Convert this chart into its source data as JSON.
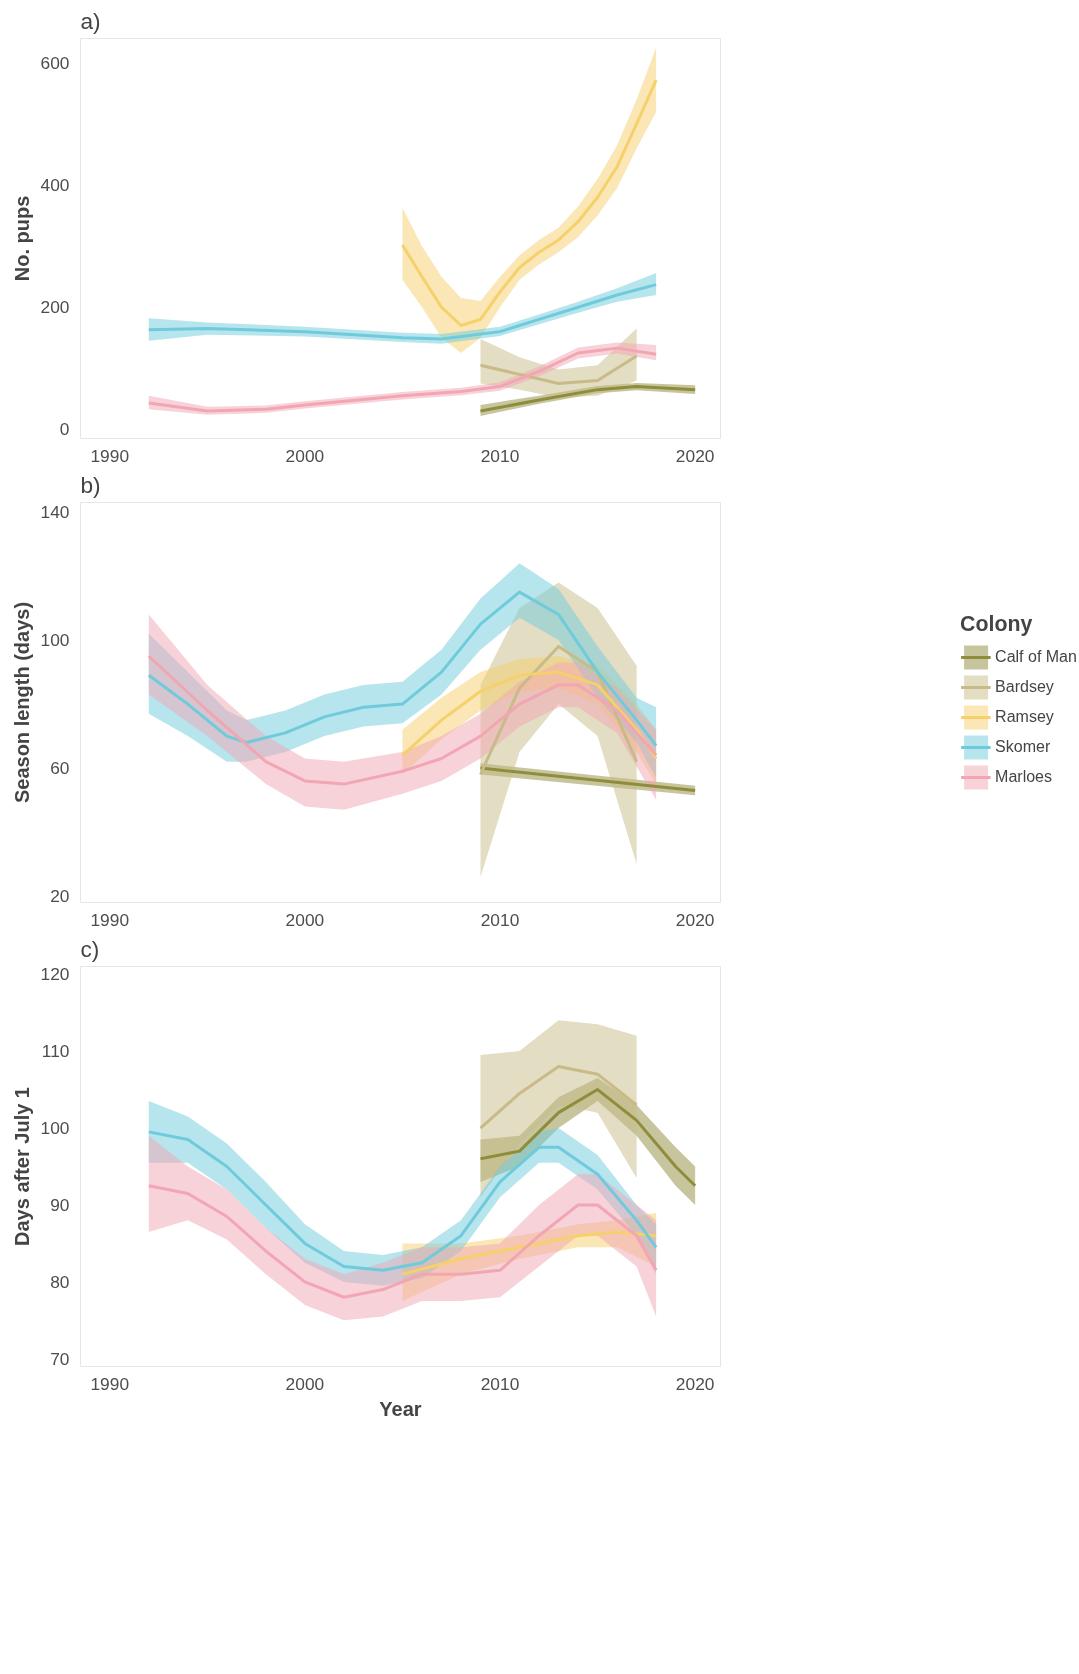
{
  "chart_data": [
    {
      "type": "line",
      "title": "a)",
      "ylabel": "No. pups",
      "xlim": [
        1988.5,
        2021.3
      ],
      "xticks": [
        1990,
        2000,
        2010,
        2020
      ],
      "ylim": [
        -15,
        640
      ],
      "yticks": [
        0,
        200,
        400,
        600
      ],
      "grid": false,
      "legend": false,
      "series": [
        {
          "color": "#8f8c3c",
          "x": [
            2009,
            2012,
            2015,
            2017,
            2020
          ],
          "values": [
            30,
            48,
            65,
            70,
            65
          ],
          "lower": [
            22,
            42,
            59,
            64,
            58
          ],
          "upper": [
            40,
            55,
            71,
            76,
            72
          ]
        },
        {
          "color": "#c8bb87",
          "x": [
            2009,
            2011,
            2013,
            2015,
            2017
          ],
          "values": [
            105,
            90,
            75,
            80,
            120
          ],
          "lower": [
            75,
            65,
            52,
            55,
            80
          ],
          "upper": [
            148,
            118,
            98,
            105,
            165
          ]
        },
        {
          "color": "#f5d06b",
          "x": [
            2005,
            2006,
            2007,
            2008,
            2009,
            2010,
            2011,
            2012,
            2013,
            2014,
            2015,
            2016,
            2017,
            2018
          ],
          "values": [
            302,
            250,
            200,
            170,
            180,
            225,
            265,
            290,
            310,
            340,
            380,
            430,
            500,
            572
          ],
          "lower": [
            245,
            200,
            150,
            125,
            150,
            200,
            245,
            270,
            290,
            315,
            350,
            395,
            460,
            520
          ],
          "upper": [
            363,
            300,
            250,
            215,
            210,
            250,
            285,
            310,
            330,
            365,
            410,
            465,
            540,
            625
          ]
        },
        {
          "color": "#6fcbdb",
          "x": [
            1992,
            1995,
            2000,
            2005,
            2007,
            2010,
            2012,
            2014,
            2016,
            2018
          ],
          "values": [
            163,
            165,
            160,
            150,
            148,
            160,
            180,
            200,
            220,
            237
          ],
          "lower": [
            145,
            155,
            152,
            143,
            140,
            153,
            172,
            191,
            209,
            220
          ],
          "upper": [
            182,
            175,
            168,
            158,
            156,
            168,
            188,
            209,
            231,
            256
          ]
        },
        {
          "color": "#f2a6b3",
          "x": [
            1992,
            1995,
            1998,
            2000,
            2005,
            2008,
            2010,
            2012,
            2014,
            2016,
            2018
          ],
          "values": [
            43,
            30,
            33,
            40,
            55,
            62,
            70,
            95,
            125,
            133,
            123
          ],
          "lower": [
            33,
            24,
            27,
            34,
            49,
            56,
            63,
            87,
            116,
            124,
            113
          ],
          "upper": [
            55,
            37,
            39,
            46,
            61,
            68,
            77,
            103,
            134,
            142,
            138
          ]
        }
      ]
    },
    {
      "type": "line",
      "title": "b)",
      "ylabel": "Season length (days)",
      "legend_title": "Colony",
      "xlim": [
        1988.5,
        2021.3
      ],
      "xticks": [
        1990,
        2000,
        2010,
        2020
      ],
      "ylim": [
        18,
        143
      ],
      "yticks": [
        20,
        60,
        100,
        140
      ],
      "grid": false,
      "legend": "right",
      "series": [
        {
          "name": "Calf of Man",
          "color": "#8f8c3c",
          "x": [
            2009,
            2020
          ],
          "values": [
            60,
            53
          ],
          "lower": [
            58,
            51.5
          ],
          "upper": [
            61.5,
            54.5
          ]
        },
        {
          "name": "Bardsey",
          "color": "#c8bb87",
          "x": [
            2009,
            2011,
            2013,
            2015,
            2017
          ],
          "values": [
            58,
            85,
            98,
            90,
            62
          ],
          "lower": [
            26,
            65,
            80,
            70,
            30
          ],
          "upper": [
            86,
            110,
            118,
            110,
            92
          ]
        },
        {
          "name": "Ramsey",
          "color": "#f5d06b",
          "x": [
            2005,
            2007,
            2009,
            2011,
            2013,
            2015,
            2017,
            2018
          ],
          "values": [
            64,
            75,
            84,
            89,
            90,
            86,
            72,
            63
          ],
          "lower": [
            58,
            69,
            78,
            84,
            85,
            80,
            65,
            55
          ],
          "upper": [
            72,
            82,
            90,
            94,
            95,
            92,
            80,
            72
          ]
        },
        {
          "name": "Skomer",
          "color": "#6fcbdb",
          "x": [
            1992,
            1994,
            1996,
            1997,
            1999,
            2001,
            2003,
            2005,
            2007,
            2009,
            2011,
            2013,
            2015,
            2017,
            2018
          ],
          "values": [
            89,
            80,
            70,
            68,
            71,
            76,
            79,
            80,
            90,
            105,
            115,
            108,
            90,
            75,
            67
          ],
          "lower": [
            77,
            70,
            62,
            62,
            65,
            70,
            73,
            74,
            83,
            97,
            107,
            100,
            82,
            68,
            57
          ],
          "upper": [
            102,
            90,
            78,
            75,
            78,
            83,
            86,
            87,
            97,
            113,
            124,
            116,
            98,
            82,
            79
          ]
        },
        {
          "name": "Marloes",
          "color": "#f2a6b3",
          "x": [
            1992,
            1995,
            1998,
            2000,
            2002,
            2005,
            2007,
            2009,
            2011,
            2013,
            2014,
            2016,
            2018
          ],
          "values": [
            95,
            78,
            62,
            56,
            55,
            59,
            63,
            70,
            80,
            86,
            86,
            78,
            64
          ],
          "lower": [
            83,
            70,
            55,
            48,
            47,
            52,
            56,
            63,
            73,
            79,
            79,
            71,
            50
          ],
          "upper": [
            108,
            86,
            70,
            63,
            62,
            65,
            70,
            77,
            87,
            93,
            93,
            85,
            72
          ]
        }
      ]
    },
    {
      "type": "line",
      "title": "c)",
      "xlabel": "Year",
      "ylabel": "Days after July 1",
      "xlim": [
        1988.5,
        2021.3
      ],
      "xticks": [
        1990,
        2000,
        2010,
        2020
      ],
      "ylim": [
        69,
        121
      ],
      "yticks": [
        70,
        80,
        90,
        100,
        110,
        120
      ],
      "grid": false,
      "legend": false,
      "series": [
        {
          "color": "#8f8c3c",
          "x": [
            2009,
            2011,
            2013,
            2015,
            2017,
            2019,
            2020
          ],
          "values": [
            96,
            97,
            102,
            105,
            101,
            95,
            92.5
          ],
          "lower": [
            93,
            95,
            100,
            103.5,
            99,
            92.5,
            90
          ],
          "upper": [
            98.5,
            99,
            104,
            106.5,
            103,
            97.5,
            95
          ]
        },
        {
          "color": "#c8bb87",
          "x": [
            2009,
            2011,
            2013,
            2015,
            2017
          ],
          "values": [
            100,
            104.5,
            108,
            107,
            103
          ],
          "lower": [
            91,
            98,
            103,
            102,
            93.5
          ],
          "upper": [
            109.5,
            110,
            114,
            113.5,
            112
          ]
        },
        {
          "color": "#f5d06b",
          "x": [
            2005,
            2008,
            2011,
            2014,
            2016,
            2018
          ],
          "values": [
            81,
            83,
            84.5,
            86,
            86.5,
            86
          ],
          "lower": [
            77.5,
            81,
            83,
            84.5,
            84.5,
            82
          ],
          "upper": [
            85,
            85,
            86,
            87.5,
            88,
            89
          ]
        },
        {
          "color": "#6fcbdb",
          "x": [
            1992,
            1994,
            1996,
            1998,
            2000,
            2002,
            2004,
            2006,
            2008,
            2010,
            2012,
            2013,
            2015,
            2017,
            2018
          ],
          "values": [
            99.5,
            98.5,
            95,
            90,
            85,
            82,
            81.5,
            82.5,
            86,
            93,
            97.5,
            97.5,
            94,
            88,
            84.5
          ],
          "lower": [
            95.5,
            95.5,
            92,
            87,
            82.5,
            80,
            79.5,
            80.5,
            84,
            91,
            95.5,
            95.5,
            92,
            86,
            81
          ],
          "upper": [
            103.5,
            101.5,
            98,
            93,
            87.5,
            84,
            83.5,
            84.5,
            88,
            95,
            99.5,
            100,
            96.5,
            90,
            87.5
          ]
        },
        {
          "color": "#f2a6b3",
          "x": [
            1992,
            1994,
            1996,
            1998,
            2000,
            2002,
            2004,
            2006,
            2008,
            2010,
            2012,
            2014,
            2015,
            2017,
            2018
          ],
          "values": [
            92.5,
            91.5,
            88.5,
            84,
            80,
            78,
            79,
            81,
            81,
            81.5,
            86,
            90,
            90,
            86,
            81.5
          ],
          "lower": [
            86.5,
            88,
            85.5,
            81,
            77,
            75,
            75.5,
            77.5,
            77.5,
            78,
            82,
            86,
            86,
            82,
            75.5
          ],
          "upper": [
            99,
            95,
            92,
            87,
            83,
            81,
            82.5,
            84.5,
            84.5,
            85,
            90,
            94,
            94,
            90,
            88
          ]
        }
      ]
    }
  ]
}
